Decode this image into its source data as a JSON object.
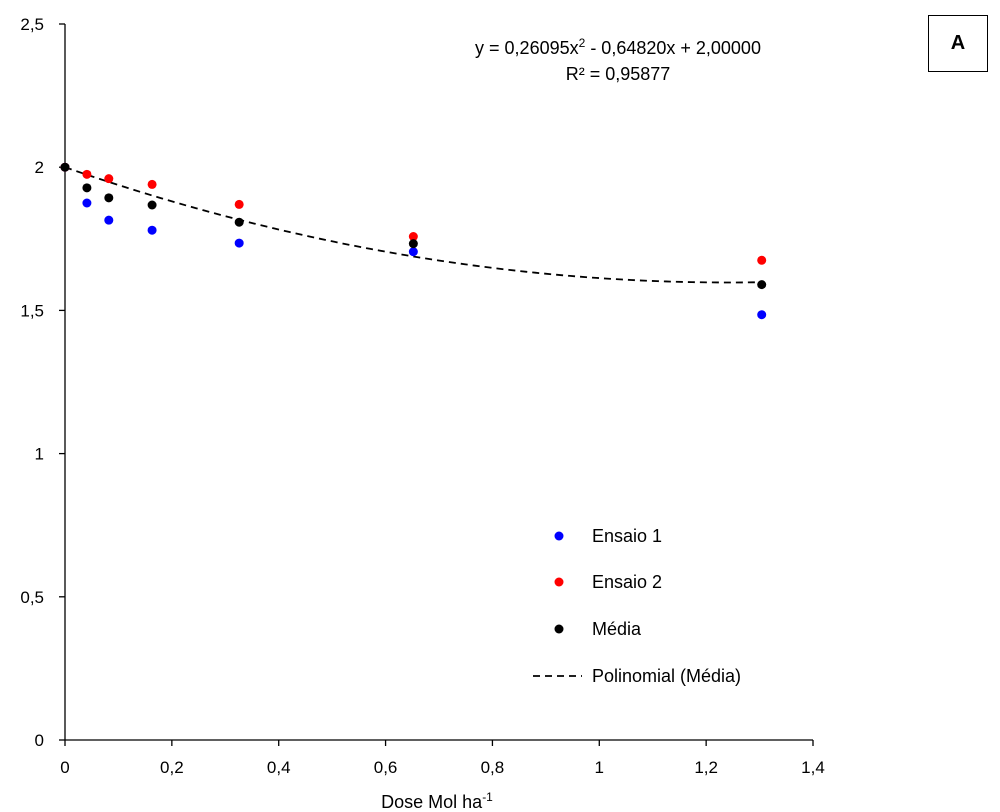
{
  "panel_label": "A",
  "chart_data": {
    "type": "scatter",
    "title": "",
    "xlabel": "Dose Mol ha",
    "xlabel_superscript": "-1",
    "ylabel": "",
    "xlim": [
      0,
      1.4
    ],
    "ylim": [
      0,
      2.5
    ],
    "x_ticks": [
      0,
      0.2,
      0.4,
      0.6,
      0.8,
      1,
      1.2,
      1.4
    ],
    "x_tick_labels": [
      "0",
      "0,2",
      "0,4",
      "0,6",
      "0,8",
      "1",
      "1,2",
      "1,4"
    ],
    "y_ticks": [
      0,
      0.5,
      1,
      1.5,
      2,
      2.5
    ],
    "y_tick_labels": [
      "0",
      "0,5",
      "1",
      "1,5",
      "2",
      "2,5"
    ],
    "grid": false,
    "legend_position": "bottom-right",
    "series": [
      {
        "name": "Ensaio 1",
        "color": "#0000ff",
        "x": [
          0,
          0.041,
          0.082,
          0.163,
          0.326,
          0.652,
          1.304
        ],
        "y": [
          2.0,
          1.875,
          1.815,
          1.78,
          1.735,
          1.705,
          1.485
        ]
      },
      {
        "name": "Ensaio 2",
        "color": "#ff0000",
        "x": [
          0,
          0.041,
          0.082,
          0.163,
          0.326,
          0.652,
          1.304
        ],
        "y": [
          2.0,
          1.975,
          1.96,
          1.94,
          1.87,
          1.758,
          1.675
        ]
      },
      {
        "name": "Média",
        "color": "#000000",
        "x": [
          0,
          0.041,
          0.082,
          0.163,
          0.326,
          0.652,
          1.304
        ],
        "y": [
          2.0,
          1.928,
          1.893,
          1.868,
          1.808,
          1.733,
          1.59
        ]
      }
    ],
    "trendline": {
      "name": "Polinomial (Média)",
      "type": "polynomial",
      "coefficients": [
        0.26095,
        -0.6482,
        2.0
      ],
      "x_range": [
        0,
        1.304
      ],
      "style": "dashed",
      "color": "#000000"
    },
    "annotations": {
      "equation": "y = 0,26095x2 - 0,64820x + 2,00000",
      "equation_prefix": "y = 0,26095x",
      "equation_superscript": "2",
      "equation_suffix": " - 0,64820x + 2,00000",
      "r_squared": "R² = 0,95877"
    }
  }
}
